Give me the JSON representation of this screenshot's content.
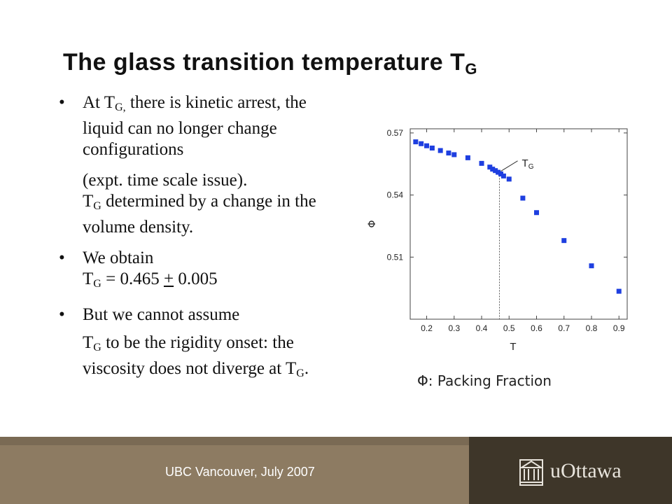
{
  "slide": {
    "title_main": "The glass transition temperature T",
    "title_sub": "G"
  },
  "bullets": {
    "b1": {
      "bullet": "•",
      "pre": "At T",
      "sub": "G,",
      "post": " there is kinetic arrest, the liquid can no longer change configurations"
    },
    "p1": {
      "text": "(expt. time scale issue)."
    },
    "p2": {
      "pre": "T",
      "sub": "G",
      "post": " determined by a change in the volume density."
    },
    "b2": {
      "bullet": "•",
      "text": "We obtain"
    },
    "p3": {
      "pre": "T",
      "sub": "G",
      "mid": " = 0.465 ",
      "pm": "+",
      "post": " 0.005"
    },
    "b3": {
      "bullet": "•",
      "text": "But we cannot assume"
    },
    "p4": {
      "pre": "T",
      "sub": "G",
      "post": " to be the rigidity onset: the viscosity does not diverge at T",
      "sub2": "G",
      "end": "."
    }
  },
  "chart_data": {
    "type": "scatter",
    "xlabel": "T",
    "ylabel": "Φ",
    "xlim": [
      0.14,
      0.93
    ],
    "ylim": [
      0.48,
      0.572
    ],
    "xticks": [
      0.2,
      0.3,
      0.4,
      0.5,
      0.6,
      0.7,
      0.8,
      0.9
    ],
    "xtick_labels": [
      "0.2",
      "0.3",
      "0.4",
      "0.5",
      "0.6",
      "0.7",
      "0.8",
      "0.9"
    ],
    "yticks": [
      0.51,
      0.54,
      0.57
    ],
    "ytick_labels": [
      "0.51",
      "0.54",
      "0.57"
    ],
    "points": [
      [
        0.16,
        0.5657
      ],
      [
        0.18,
        0.5648
      ],
      [
        0.2,
        0.5638
      ],
      [
        0.22,
        0.5627
      ],
      [
        0.25,
        0.5615
      ],
      [
        0.28,
        0.5603
      ],
      [
        0.3,
        0.5595
      ],
      [
        0.35,
        0.558
      ],
      [
        0.4,
        0.5553
      ],
      [
        0.43,
        0.5535
      ],
      [
        0.44,
        0.5525
      ],
      [
        0.45,
        0.5518
      ],
      [
        0.46,
        0.551
      ],
      [
        0.47,
        0.5502
      ],
      [
        0.48,
        0.5492
      ],
      [
        0.5,
        0.5477
      ],
      [
        0.55,
        0.5385
      ],
      [
        0.6,
        0.5315
      ],
      [
        0.7,
        0.518
      ],
      [
        0.8,
        0.5058
      ],
      [
        0.9,
        0.4935
      ]
    ],
    "marker_color": "#1e3fe0",
    "annotation": {
      "base": "T",
      "sub": "G",
      "x": 0.465
    },
    "grid": false
  },
  "caption": {
    "text": "Φ: Packing Fraction"
  },
  "footer": {
    "text": "UBC Vancouver, July 2007",
    "logo_text": "uOttawa"
  }
}
